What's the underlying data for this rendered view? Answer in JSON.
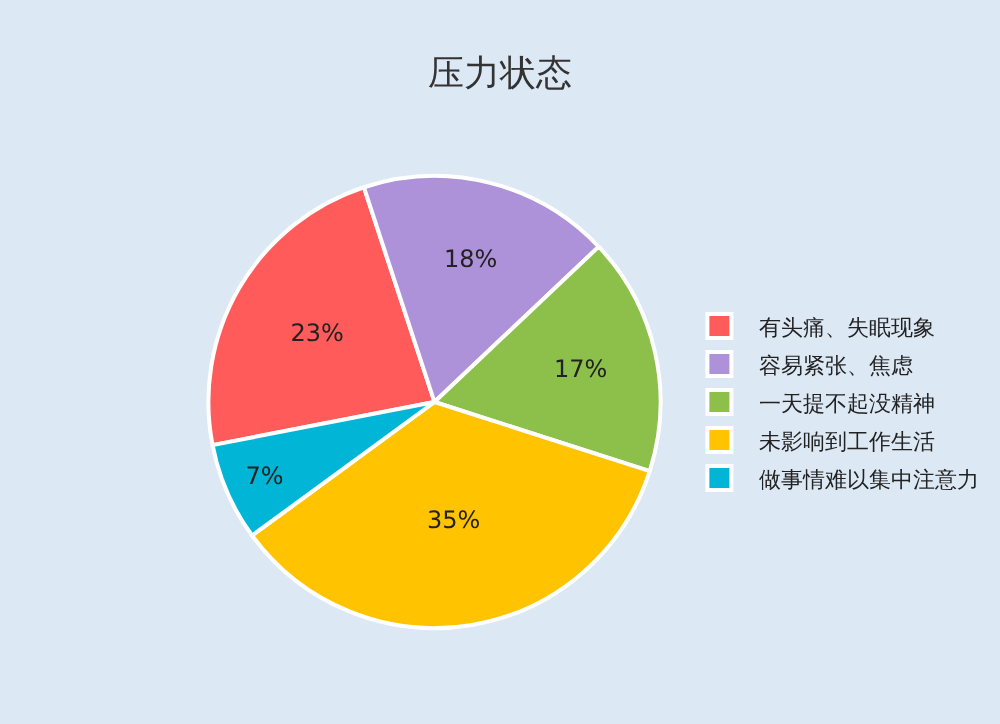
{
  "chart_data": {
    "type": "pie",
    "title": "压力状态",
    "categories": [
      "有头痛、失眠现象",
      "容易紧张、焦虑",
      "一天提不起没精神",
      "未影响到工作生活",
      "做事情难以集中注意力"
    ],
    "values": [
      23,
      18,
      17,
      35,
      7
    ],
    "value_labels": [
      "23%",
      "18%",
      "17%",
      "35%",
      "7%"
    ],
    "colors": [
      "#ff5b5b",
      "#ad91d9",
      "#8cc04b",
      "#ffc300",
      "#00b5d6"
    ],
    "legend": "right"
  }
}
